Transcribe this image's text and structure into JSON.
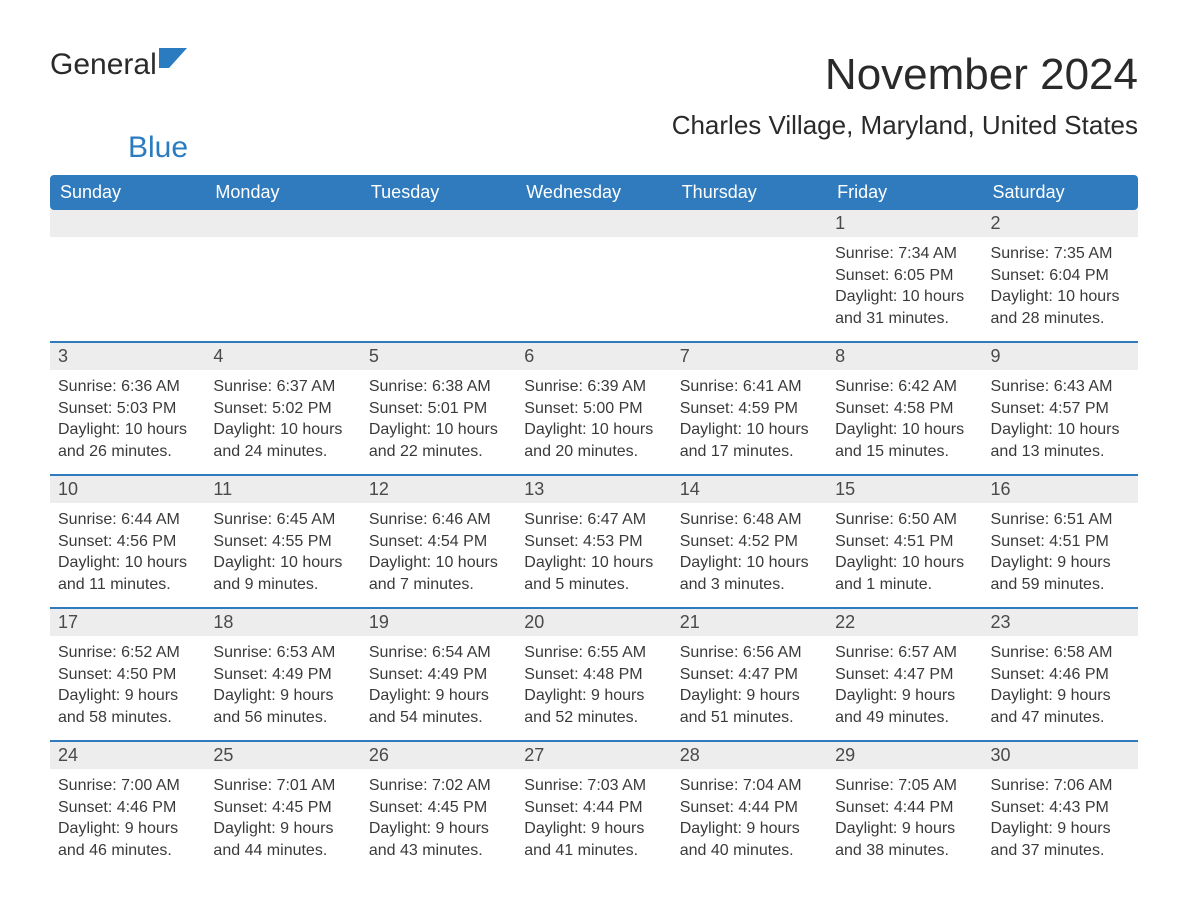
{
  "colors": {
    "header_bg": "#2f7bbd",
    "header_text": "#ffffff",
    "daynum_bg": "#ededed",
    "text": "#3a3a3a",
    "logo_blue": "#2a7bbf",
    "page_bg": "#ffffff",
    "week_rule": "#2f7bbd"
  },
  "typography": {
    "month_title_fontsize": 44,
    "location_fontsize": 26,
    "weekday_fontsize": 18,
    "daynum_fontsize": 18,
    "body_fontsize": 16,
    "font_family": "Arial"
  },
  "logo": {
    "word1": "General",
    "word2": "Blue"
  },
  "title": "November 2024",
  "location": "Charles Village, Maryland, United States",
  "weekdays": [
    "Sunday",
    "Monday",
    "Tuesday",
    "Wednesday",
    "Thursday",
    "Friday",
    "Saturday"
  ],
  "labels": {
    "sunrise": "Sunrise:",
    "sunset": "Sunset:",
    "daylight": "Daylight:"
  },
  "weeks": [
    [
      null,
      null,
      null,
      null,
      null,
      {
        "n": "1",
        "sunrise": "7:34 AM",
        "sunset": "6:05 PM",
        "daylight": "10 hours and 31 minutes."
      },
      {
        "n": "2",
        "sunrise": "7:35 AM",
        "sunset": "6:04 PM",
        "daylight": "10 hours and 28 minutes."
      }
    ],
    [
      {
        "n": "3",
        "sunrise": "6:36 AM",
        "sunset": "5:03 PM",
        "daylight": "10 hours and 26 minutes."
      },
      {
        "n": "4",
        "sunrise": "6:37 AM",
        "sunset": "5:02 PM",
        "daylight": "10 hours and 24 minutes."
      },
      {
        "n": "5",
        "sunrise": "6:38 AM",
        "sunset": "5:01 PM",
        "daylight": "10 hours and 22 minutes."
      },
      {
        "n": "6",
        "sunrise": "6:39 AM",
        "sunset": "5:00 PM",
        "daylight": "10 hours and 20 minutes."
      },
      {
        "n": "7",
        "sunrise": "6:41 AM",
        "sunset": "4:59 PM",
        "daylight": "10 hours and 17 minutes."
      },
      {
        "n": "8",
        "sunrise": "6:42 AM",
        "sunset": "4:58 PM",
        "daylight": "10 hours and 15 minutes."
      },
      {
        "n": "9",
        "sunrise": "6:43 AM",
        "sunset": "4:57 PM",
        "daylight": "10 hours and 13 minutes."
      }
    ],
    [
      {
        "n": "10",
        "sunrise": "6:44 AM",
        "sunset": "4:56 PM",
        "daylight": "10 hours and 11 minutes."
      },
      {
        "n": "11",
        "sunrise": "6:45 AM",
        "sunset": "4:55 PM",
        "daylight": "10 hours and 9 minutes."
      },
      {
        "n": "12",
        "sunrise": "6:46 AM",
        "sunset": "4:54 PM",
        "daylight": "10 hours and 7 minutes."
      },
      {
        "n": "13",
        "sunrise": "6:47 AM",
        "sunset": "4:53 PM",
        "daylight": "10 hours and 5 minutes."
      },
      {
        "n": "14",
        "sunrise": "6:48 AM",
        "sunset": "4:52 PM",
        "daylight": "10 hours and 3 minutes."
      },
      {
        "n": "15",
        "sunrise": "6:50 AM",
        "sunset": "4:51 PM",
        "daylight": "10 hours and 1 minute."
      },
      {
        "n": "16",
        "sunrise": "6:51 AM",
        "sunset": "4:51 PM",
        "daylight": "9 hours and 59 minutes."
      }
    ],
    [
      {
        "n": "17",
        "sunrise": "6:52 AM",
        "sunset": "4:50 PM",
        "daylight": "9 hours and 58 minutes."
      },
      {
        "n": "18",
        "sunrise": "6:53 AM",
        "sunset": "4:49 PM",
        "daylight": "9 hours and 56 minutes."
      },
      {
        "n": "19",
        "sunrise": "6:54 AM",
        "sunset": "4:49 PM",
        "daylight": "9 hours and 54 minutes."
      },
      {
        "n": "20",
        "sunrise": "6:55 AM",
        "sunset": "4:48 PM",
        "daylight": "9 hours and 52 minutes."
      },
      {
        "n": "21",
        "sunrise": "6:56 AM",
        "sunset": "4:47 PM",
        "daylight": "9 hours and 51 minutes."
      },
      {
        "n": "22",
        "sunrise": "6:57 AM",
        "sunset": "4:47 PM",
        "daylight": "9 hours and 49 minutes."
      },
      {
        "n": "23",
        "sunrise": "6:58 AM",
        "sunset": "4:46 PM",
        "daylight": "9 hours and 47 minutes."
      }
    ],
    [
      {
        "n": "24",
        "sunrise": "7:00 AM",
        "sunset": "4:46 PM",
        "daylight": "9 hours and 46 minutes."
      },
      {
        "n": "25",
        "sunrise": "7:01 AM",
        "sunset": "4:45 PM",
        "daylight": "9 hours and 44 minutes."
      },
      {
        "n": "26",
        "sunrise": "7:02 AM",
        "sunset": "4:45 PM",
        "daylight": "9 hours and 43 minutes."
      },
      {
        "n": "27",
        "sunrise": "7:03 AM",
        "sunset": "4:44 PM",
        "daylight": "9 hours and 41 minutes."
      },
      {
        "n": "28",
        "sunrise": "7:04 AM",
        "sunset": "4:44 PM",
        "daylight": "9 hours and 40 minutes."
      },
      {
        "n": "29",
        "sunrise": "7:05 AM",
        "sunset": "4:44 PM",
        "daylight": "9 hours and 38 minutes."
      },
      {
        "n": "30",
        "sunrise": "7:06 AM",
        "sunset": "4:43 PM",
        "daylight": "9 hours and 37 minutes."
      }
    ]
  ]
}
